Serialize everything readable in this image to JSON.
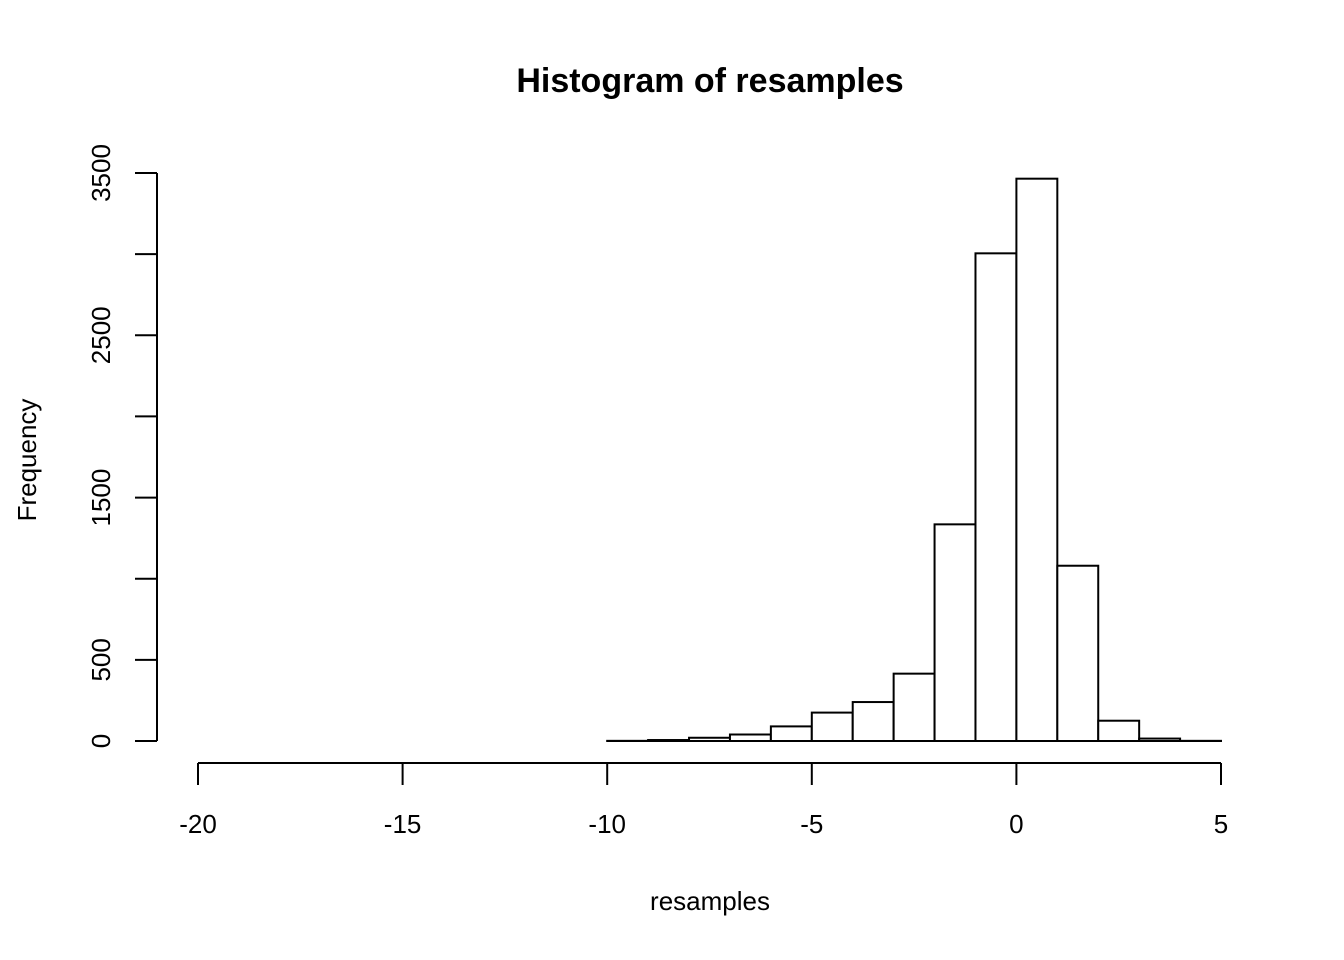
{
  "chart_data": {
    "type": "bar",
    "title": "Histogram of resamples",
    "xlabel": "resamples",
    "ylabel": "Frequency",
    "xlim": [
      -20,
      5
    ],
    "ylim": [
      0,
      3500
    ],
    "x_ticks": [
      -20,
      -15,
      -10,
      -5,
      0,
      5
    ],
    "y_ticks": [
      0,
      500,
      1500,
      2500,
      3500
    ],
    "bins": [
      {
        "from": -20,
        "to": -19,
        "count": 0
      },
      {
        "from": -19,
        "to": -18,
        "count": 0
      },
      {
        "from": -18,
        "to": -17,
        "count": 0
      },
      {
        "from": -17,
        "to": -16,
        "count": 0
      },
      {
        "from": -16,
        "to": -15,
        "count": 0
      },
      {
        "from": -15,
        "to": -14,
        "count": 0
      },
      {
        "from": -14,
        "to": -13,
        "count": 0
      },
      {
        "from": -13,
        "to": -12,
        "count": 0
      },
      {
        "from": -12,
        "to": -11,
        "count": 0
      },
      {
        "from": -11,
        "to": -10,
        "count": 0
      },
      {
        "from": -10,
        "to": -9,
        "count": 1
      },
      {
        "from": -9,
        "to": -8,
        "count": 6
      },
      {
        "from": -8,
        "to": -7,
        "count": 20
      },
      {
        "from": -7,
        "to": -6,
        "count": 40
      },
      {
        "from": -6,
        "to": -5,
        "count": 90
      },
      {
        "from": -5,
        "to": -4,
        "count": 175
      },
      {
        "from": -4,
        "to": -3,
        "count": 240
      },
      {
        "from": -3,
        "to": -2,
        "count": 415
      },
      {
        "from": -2,
        "to": -1,
        "count": 1335
      },
      {
        "from": -1,
        "to": 0,
        "count": 3005
      },
      {
        "from": 0,
        "to": 1,
        "count": 3465
      },
      {
        "from": 1,
        "to": 2,
        "count": 1080
      },
      {
        "from": 2,
        "to": 3,
        "count": 125
      },
      {
        "from": 3,
        "to": 4,
        "count": 15
      },
      {
        "from": 4,
        "to": 5,
        "count": 1
      }
    ]
  }
}
